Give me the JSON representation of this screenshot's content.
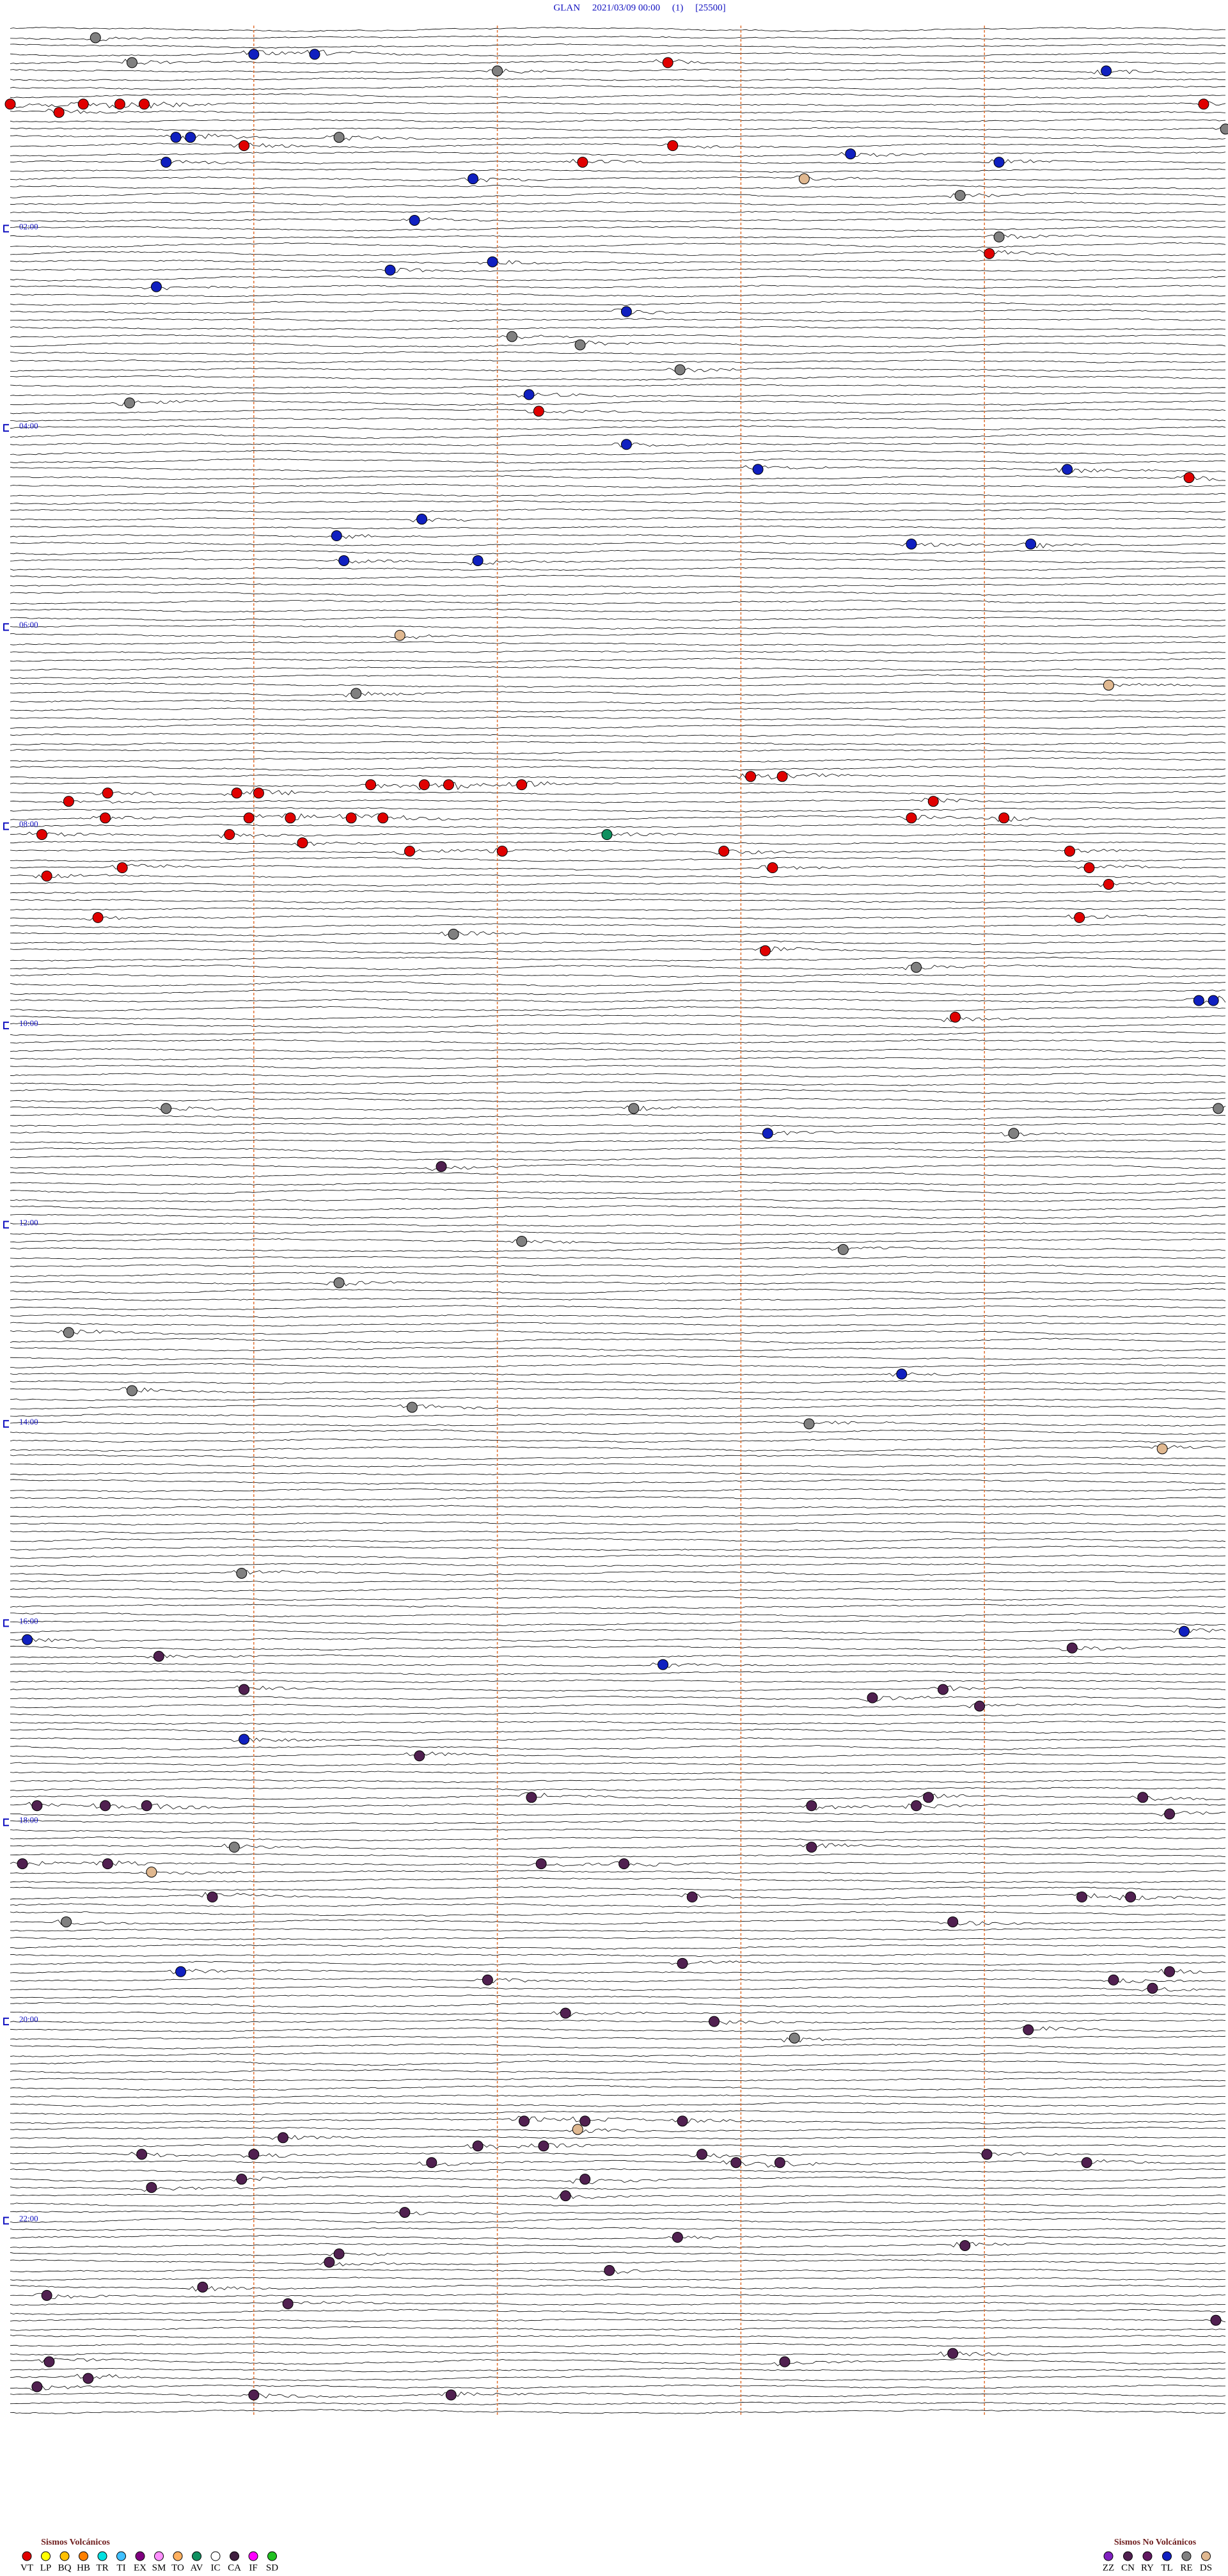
{
  "chart_data": {
    "type": "helicorder",
    "title": "GLAN     2021/03/09 00:00     (1)     [25500]",
    "xlim": [
      0,
      5
    ],
    "xticks": [
      1,
      2,
      3,
      4
    ],
    "ylim": [
      0,
      1440
    ],
    "hour_marks": [
      {
        "value": 120,
        "label": "02:00"
      },
      {
        "value": 240,
        "label": "04:00"
      },
      {
        "value": 360,
        "label": "06:00"
      },
      {
        "value": 480,
        "label": "08:00"
      },
      {
        "value": 600,
        "label": "10:00"
      },
      {
        "value": 720,
        "label": "12:00"
      },
      {
        "value": 840,
        "label": "14:00"
      },
      {
        "value": 960,
        "label": "16:00"
      },
      {
        "value": 1080,
        "label": "18:00"
      },
      {
        "value": 1200,
        "label": "20:00"
      },
      {
        "value": 1320,
        "label": "22:00"
      }
    ],
    "legend": {
      "volcanic": {
        "title": "Sismos Volcánicos",
        "items": [
          {
            "code": "VT",
            "color": "#e00000"
          },
          {
            "code": "LP",
            "color": "#ffff00"
          },
          {
            "code": "BQ",
            "color": "#ffc000"
          },
          {
            "code": "HB",
            "color": "#ff8000"
          },
          {
            "code": "TR",
            "color": "#00e0e0"
          },
          {
            "code": "TI",
            "color": "#40c0ff"
          },
          {
            "code": "EX",
            "color": "#800080"
          },
          {
            "code": "SM",
            "color": "#ff90ff"
          },
          {
            "code": "TO",
            "color": "#ffb060"
          },
          {
            "code": "AV",
            "color": "#109060"
          },
          {
            "code": "IC",
            "color": "#ffffff"
          },
          {
            "code": "CA",
            "color": "#402040"
          },
          {
            "code": "IF",
            "color": "#ff00ff"
          },
          {
            "code": "SD",
            "color": "#20c020"
          }
        ]
      },
      "non_volcanic": {
        "title": "Sismos No Volcánicos",
        "items": [
          {
            "code": "ZZ",
            "color": "#8020c0"
          },
          {
            "code": "CN",
            "color": "#502050"
          },
          {
            "code": "RY",
            "color": "#601860"
          },
          {
            "code": "TL",
            "color": "#1020c0"
          },
          {
            "code": "RE",
            "color": "#808080"
          },
          {
            "code": "DS",
            "color": "#e0b890"
          }
        ]
      }
    },
    "events": [
      {
        "type": "RE",
        "t": 5.35
      },
      {
        "type": "TL",
        "t": 16.0
      },
      {
        "type": "TL",
        "t": 16.25
      },
      {
        "type": "RE",
        "t": 20.5
      },
      {
        "type": "RE",
        "t": 27.0
      },
      {
        "type": "VT",
        "t": 22.7
      },
      {
        "type": "TL",
        "t": 29.5
      },
      {
        "type": "VT",
        "t": 45.0
      },
      {
        "type": "VT",
        "t": 50.2
      },
      {
        "type": "VT",
        "t": 45.3
      },
      {
        "type": "VT",
        "t": 45.45
      },
      {
        "type": "VT",
        "t": 45.55
      },
      {
        "type": "VT",
        "t": 49.9
      },
      {
        "type": "RE",
        "t": 64.99
      },
      {
        "type": "TL",
        "t": 65.68
      },
      {
        "type": "TL",
        "t": 65.74
      },
      {
        "type": "RE",
        "t": 66.35
      },
      {
        "type": "VT",
        "t": 70.96
      },
      {
        "type": "TL",
        "t": 80.64
      },
      {
        "type": "VT",
        "t": 82.35
      },
      {
        "type": "VT",
        "t": 72.72
      },
      {
        "type": "TL",
        "t": 78.45
      },
      {
        "type": "TL",
        "t": 84.06
      },
      {
        "type": "TL",
        "t": 91.9
      },
      {
        "type": "DS",
        "t": 93.26
      },
      {
        "type": "RE",
        "t": 103.9
      },
      {
        "type": "TL",
        "t": 116.66
      },
      {
        "type": "RE",
        "t": 129.06
      },
      {
        "type": "VT",
        "t": 139.02
      },
      {
        "type": "TL",
        "t": 146.56
      },
      {
        "type": "TL",
        "t": 141.98
      },
      {
        "type": "TL",
        "t": 155.6
      },
      {
        "type": "TL",
        "t": 172.53
      },
      {
        "type": "RE",
        "t": 187.06
      },
      {
        "type": "RE",
        "t": 192.34
      },
      {
        "type": "RE",
        "t": 207.75
      },
      {
        "type": "RE",
        "t": 225.49
      },
      {
        "type": "TL",
        "t": 222.13
      },
      {
        "type": "VT",
        "t": 232.17
      },
      {
        "type": "TL",
        "t": 252.53
      },
      {
        "type": "TL",
        "t": 268.07
      },
      {
        "type": "TL",
        "t": 269.34
      },
      {
        "type": "VT",
        "t": 274.84
      },
      {
        "type": "TL",
        "t": 296.69
      },
      {
        "type": "TL",
        "t": 306.34
      },
      {
        "type": "TL",
        "t": 321.37
      },
      {
        "type": "TL",
        "t": 321.92
      },
      {
        "type": "TL",
        "t": 313.7
      },
      {
        "type": "TL",
        "t": 314.19
      },
      {
        "type": "DS",
        "t": 366.6
      },
      {
        "type": "RE",
        "t": 401.42
      },
      {
        "type": "DS",
        "t": 399.51
      },
      {
        "type": "VT",
        "t": 460.4
      },
      {
        "type": "VT",
        "t": 460.93
      },
      {
        "type": "VT",
        "t": 461.02
      },
      {
        "type": "VT",
        "t": 456.8
      },
      {
        "type": "VT",
        "t": 457.1
      },
      {
        "type": "VT",
        "t": 453.04
      },
      {
        "type": "VT",
        "t": 453.17
      },
      {
        "type": "VT",
        "t": 456.48
      },
      {
        "type": "VT",
        "t": 456.7
      },
      {
        "type": "VT",
        "t": 465.24
      },
      {
        "type": "VT",
        "t": 475.39
      },
      {
        "type": "VT",
        "t": 475.98
      },
      {
        "type": "VT",
        "t": 476.15
      },
      {
        "type": "VT",
        "t": 476.4
      },
      {
        "type": "VT",
        "t": 476.53
      },
      {
        "type": "VT",
        "t": 478.7
      },
      {
        "type": "VT",
        "t": 468.79
      },
      {
        "type": "VT",
        "t": 479.08
      },
      {
        "type": "VT",
        "t": 485.13
      },
      {
        "type": "AV",
        "t": 487.45
      },
      {
        "type": "VT",
        "t": 485.9
      },
      {
        "type": "VT",
        "t": 491.2
      },
      {
        "type": "VT",
        "t": 496.64
      },
      {
        "type": "VT",
        "t": 497.02
      },
      {
        "type": "VT",
        "t": 497.93
      },
      {
        "type": "VT",
        "t": 499.35
      },
      {
        "type": "VT",
        "t": 510.15
      },
      {
        "type": "VT",
        "t": 505.46
      },
      {
        "type": "VT",
        "t": 508.13
      },
      {
        "type": "VT",
        "t": 509.43
      },
      {
        "type": "VT",
        "t": 535.36
      },
      {
        "type": "VT",
        "t": 539.39
      },
      {
        "type": "VT",
        "t": 519.51
      },
      {
        "type": "RE",
        "t": 546.82
      },
      {
        "type": "VT",
        "t": 558.1
      },
      {
        "type": "RE",
        "t": 568.72
      },
      {
        "type": "VT",
        "t": 598.88
      },
      {
        "type": "TL",
        "t": 589.88
      },
      {
        "type": "TL",
        "t": 589.94
      },
      {
        "type": "RE",
        "t": 650.64
      },
      {
        "type": "RE",
        "t": 652.56
      },
      {
        "type": "RE",
        "t": 654.96
      },
      {
        "type": "TL",
        "t": 668.11
      },
      {
        "type": "RE",
        "t": 669.12
      },
      {
        "type": "CN",
        "t": 686.77
      },
      {
        "type": "RE",
        "t": 732.1
      },
      {
        "type": "RE",
        "t": 738.42
      },
      {
        "type": "RE",
        "t": 756.35
      },
      {
        "type": "RE",
        "t": 785.24
      },
      {
        "type": "TL",
        "t": 813.66
      },
      {
        "type": "RE",
        "t": 820.5
      },
      {
        "type": "RE",
        "t": 831.65
      },
      {
        "type": "RE",
        "t": 843.28
      },
      {
        "type": "DS",
        "t": 859.73
      },
      {
        "type": "RE",
        "t": 930.95
      },
      {
        "type": "TL",
        "t": 970.07
      },
      {
        "type": "CN",
        "t": 980.61
      },
      {
        "type": "TL",
        "t": 987.68
      },
      {
        "type": "CN",
        "t": 1008.54
      },
      {
        "type": "CN",
        "t": 1003.83
      },
      {
        "type": "CN",
        "t": 1013.98
      },
      {
        "type": "TL",
        "t": 969.82
      },
      {
        "type": "CN",
        "t": 979.36
      },
      {
        "type": "CN",
        "t": 1000.96
      },
      {
        "type": "TL",
        "t": 1030.96
      },
      {
        "type": "CN",
        "t": 1041.68
      },
      {
        "type": "CN",
        "t": 1067.14
      },
      {
        "type": "CN",
        "t": 1070.11
      },
      {
        "type": "CN",
        "t": 1070.39
      },
      {
        "type": "CN",
        "t": 1070.56
      },
      {
        "type": "CN",
        "t": 1073.29
      },
      {
        "type": "CN",
        "t": 1073.72
      },
      {
        "type": "CN",
        "t": 1068.77
      },
      {
        "type": "CN",
        "t": 1069.65
      },
      {
        "type": "CN",
        "t": 1079.76
      },
      {
        "type": "RE",
        "t": 1095.92
      },
      {
        "type": "CN",
        "t": 1105.05
      },
      {
        "type": "CN",
        "t": 1105.4
      },
      {
        "type": "DS",
        "t": 1110.58
      },
      {
        "type": "CN",
        "t": 1107.18
      },
      {
        "type": "CN",
        "t": 1107.52
      },
      {
        "type": "CN",
        "t": 1098.29
      },
      {
        "type": "CN",
        "t": 1125.83
      },
      {
        "type": "RE",
        "t": 1140.23
      },
      {
        "type": "CN",
        "t": 1127.8
      },
      {
        "type": "CN",
        "t": 1129.4
      },
      {
        "type": "CN",
        "t": 1129.6
      },
      {
        "type": "CN",
        "t": 1143.87
      },
      {
        "type": "TL",
        "t": 1170.7
      },
      {
        "type": "CN",
        "t": 1167.76
      },
      {
        "type": "CN",
        "t": 1176.96
      },
      {
        "type": "CN",
        "t": 1179.53
      },
      {
        "type": "CN",
        "t": 1174.76
      },
      {
        "type": "CN",
        "t": 1184.69
      },
      {
        "type": "CN",
        "t": 1197.28
      },
      {
        "type": "CN",
        "t": 1202.89
      },
      {
        "type": "RE",
        "t": 1213.22
      },
      {
        "type": "CN",
        "t": 1209.18
      },
      {
        "type": "CN",
        "t": 1262.11
      },
      {
        "type": "DS",
        "t": 1267.33
      },
      {
        "type": "CN",
        "t": 1262.36
      },
      {
        "type": "CN",
        "t": 1262.76
      },
      {
        "type": "CN",
        "t": 1271.12
      },
      {
        "type": "CN",
        "t": 1280.54
      },
      {
        "type": "CN",
        "t": 1281.0
      },
      {
        "type": "CN",
        "t": 1286.73
      },
      {
        "type": "CN",
        "t": 1276.92
      },
      {
        "type": "CN",
        "t": 1277.19
      },
      {
        "type": "CN",
        "t": 1282.84
      },
      {
        "type": "CN",
        "t": 1287.98
      },
      {
        "type": "CN",
        "t": 1288.16
      },
      {
        "type": "CN",
        "t": 1284.01
      },
      {
        "type": "CN",
        "t": 1289.42
      },
      {
        "type": "CN",
        "t": 1300.58
      },
      {
        "type": "CN",
        "t": 1295.95
      },
      {
        "type": "CN",
        "t": 1297.36
      },
      {
        "type": "CN",
        "t": 1307.28
      },
      {
        "type": "CN",
        "t": 1316.62
      },
      {
        "type": "CN",
        "t": 1341.35
      },
      {
        "type": "CN",
        "t": 1346.31
      },
      {
        "type": "CN",
        "t": 1332.74
      },
      {
        "type": "CN",
        "t": 1338.92
      },
      {
        "type": "CN",
        "t": 1352.46
      },
      {
        "type": "CN",
        "t": 1360.79
      },
      {
        "type": "CN",
        "t": 1365.15
      },
      {
        "type": "CN",
        "t": 1371.14
      },
      {
        "type": "CN",
        "t": 1384.95
      },
      {
        "type": "CN",
        "t": 1403.87
      },
      {
        "type": "CN",
        "t": 1408.18
      },
      {
        "type": "CN",
        "t": 1405.16
      },
      {
        "type": "CN",
        "t": 1415.32
      },
      {
        "type": "CN",
        "t": 1420.11
      },
      {
        "type": "CN",
        "t": 1426.81
      },
      {
        "type": "CN",
        "t": 1426.0
      }
    ]
  }
}
